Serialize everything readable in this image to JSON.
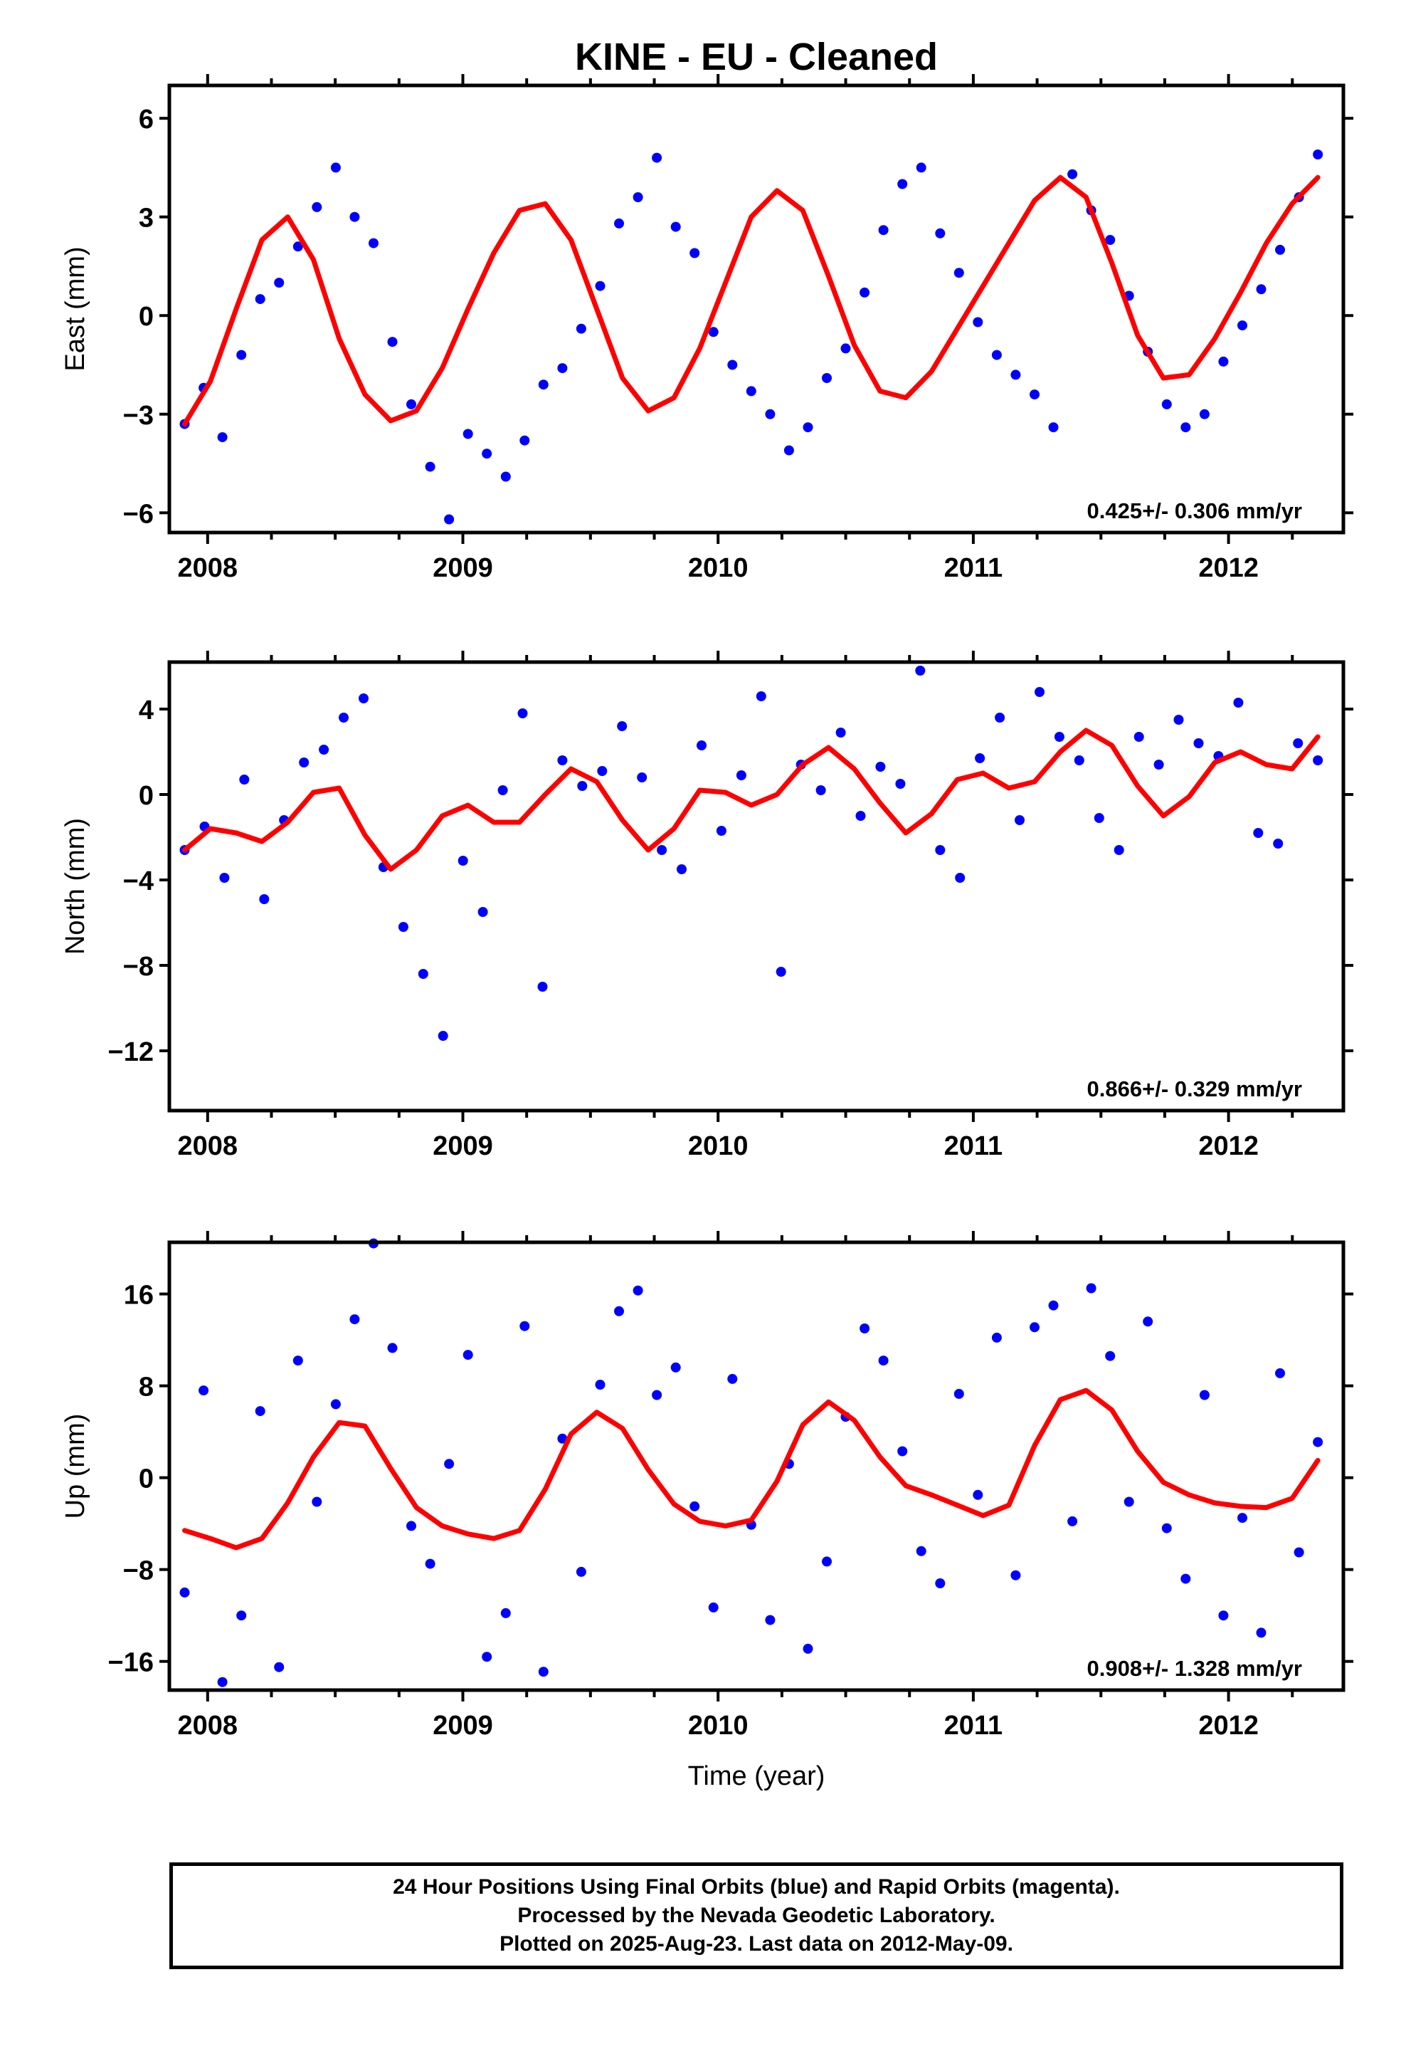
{
  "chart_data": [
    {
      "type": "scatter",
      "title": "KINE  - EU - Cleaned",
      "xlabel": "",
      "ylabel": "East (mm)",
      "xlim": [
        2007.85,
        2012.45
      ],
      "ylim": [
        -6.6,
        7.0
      ],
      "yticks": [
        -6,
        -3,
        0,
        3,
        6
      ],
      "ytick_labels": [
        "−6",
        "−3",
        "0",
        "3",
        "6"
      ],
      "xticks": [
        2008,
        2009,
        2010,
        2011,
        2012
      ],
      "xtick_labels": [
        "2008",
        "2009",
        "2010",
        "2011",
        "2012"
      ],
      "velocity_label": "0.425+/- 0.306 mm/yr",
      "grid": false,
      "series": [
        {
          "color": "#0000ff",
          "values": [
            -3.3,
            -2.2,
            -3.7,
            -1.2,
            0.5,
            1.0,
            2.1,
            3.3,
            4.5,
            3.0,
            2.2,
            -0.8,
            -2.7,
            -4.6,
            -6.2,
            -3.6,
            -4.2,
            -4.9,
            -3.8,
            -2.1,
            -1.6,
            -0.4,
            0.9,
            2.8,
            3.6,
            4.8,
            2.7,
            1.9,
            -0.5,
            -1.5,
            -2.3,
            -3.0,
            -4.1,
            -3.4,
            -1.9,
            -1.0,
            0.7,
            2.6,
            4.0,
            4.5,
            2.5,
            1.3,
            -0.2,
            -1.2,
            -1.8,
            -2.4,
            -3.4,
            4.3,
            3.2,
            2.3,
            0.6,
            -1.1,
            -2.7,
            -3.4,
            -3.0,
            -1.4,
            -0.3,
            0.8,
            2.0,
            3.6,
            4.9
          ]
        },
        {
          "color": "#ff0000",
          "values": [
            -3.3,
            -2.0,
            0.2,
            2.3,
            3.0,
            1.7,
            -0.7,
            -2.4,
            -3.2,
            -2.9,
            -1.6,
            0.2,
            1.9,
            3.2,
            3.4,
            2.3,
            0.2,
            -1.9,
            -2.9,
            -2.5,
            -1.0,
            1.0,
            3.0,
            3.8,
            3.2,
            1.2,
            -0.9,
            -2.3,
            -2.5,
            -1.7,
            -0.4,
            0.9,
            2.2,
            3.5,
            4.2,
            3.6,
            1.6,
            -0.6,
            -1.9,
            -1.8,
            -0.7,
            0.7,
            2.2,
            3.4,
            4.2
          ]
        }
      ]
    },
    {
      "type": "scatter",
      "title": "",
      "xlabel": "",
      "ylabel": "North (mm)",
      "xlim": [
        2007.85,
        2012.45
      ],
      "ylim": [
        -14.8,
        6.2
      ],
      "yticks": [
        -12,
        -8,
        -4,
        0,
        4
      ],
      "ytick_labels": [
        "−12",
        "−8",
        "−4",
        "0",
        "4"
      ],
      "xticks": [
        2008,
        2009,
        2010,
        2011,
        2012
      ],
      "xtick_labels": [
        "2008",
        "2009",
        "2010",
        "2011",
        "2012"
      ],
      "velocity_label": "0.866+/- 0.329 mm/yr",
      "grid": false,
      "series": [
        {
          "color": "#0000ff",
          "values": [
            -2.6,
            -1.5,
            -3.9,
            0.7,
            -4.9,
            -1.2,
            1.5,
            2.1,
            3.6,
            4.5,
            -3.4,
            -6.2,
            -8.4,
            -11.3,
            -3.1,
            -5.5,
            0.2,
            3.8,
            -9.0,
            1.6,
            0.4,
            1.1,
            3.2,
            0.8,
            -2.6,
            -3.5,
            2.3,
            -1.7,
            0.9,
            4.6,
            -8.3,
            1.4,
            0.2,
            2.9,
            -1.0,
            1.3,
            0.5,
            5.8,
            -2.6,
            -3.9,
            1.7,
            3.6,
            -1.2,
            4.8,
            2.7,
            1.6,
            -1.1,
            -2.6,
            2.7,
            1.4,
            3.5,
            2.4,
            1.8,
            4.3,
            -1.8,
            -2.3,
            2.4,
            1.6
          ]
        },
        {
          "color": "#ff0000",
          "values": [
            -2.6,
            -1.6,
            -1.8,
            -2.2,
            -1.3,
            0.1,
            0.3,
            -1.9,
            -3.5,
            -2.6,
            -1.0,
            -0.5,
            -1.3,
            -1.3,
            0.0,
            1.2,
            0.6,
            -1.2,
            -2.6,
            -1.6,
            0.2,
            0.1,
            -0.5,
            0.0,
            1.4,
            2.2,
            1.2,
            -0.4,
            -1.8,
            -0.9,
            0.7,
            1.0,
            0.3,
            0.6,
            2.0,
            3.0,
            2.3,
            0.4,
            -1.0,
            -0.1,
            1.5,
            2.0,
            1.4,
            1.2,
            2.7
          ]
        }
      ]
    },
    {
      "type": "scatter",
      "title": "",
      "xlabel": "Time (year)",
      "ylabel": "Up (mm)",
      "xlim": [
        2007.85,
        2012.45
      ],
      "ylim": [
        -18.5,
        20.5
      ],
      "yticks": [
        -16,
        -8,
        0,
        8,
        16
      ],
      "ytick_labels": [
        "−16",
        "−8",
        "0",
        "8",
        "16"
      ],
      "xticks": [
        2008,
        2009,
        2010,
        2011,
        2012
      ],
      "xtick_labels": [
        "2008",
        "2009",
        "2010",
        "2011",
        "2012"
      ],
      "velocity_label": "0.908+/- 1.328 mm/yr",
      "grid": false,
      "series": [
        {
          "color": "#0000ff",
          "values": [
            -10.0,
            7.6,
            -17.8,
            -12.0,
            5.8,
            -16.5,
            10.2,
            -2.1,
            6.4,
            13.8,
            20.4,
            11.3,
            -4.2,
            -7.5,
            1.2,
            10.7,
            -15.6,
            -11.8,
            13.2,
            -16.9,
            3.4,
            -8.2,
            8.1,
            14.5,
            16.3,
            7.2,
            9.6,
            -2.5,
            -11.3,
            8.6,
            -4.1,
            -12.4,
            1.2,
            -14.9,
            -7.3,
            5.3,
            13.0,
            10.2,
            2.3,
            -6.4,
            -9.2,
            7.3,
            -1.5,
            12.2,
            -8.5,
            13.1,
            15.0,
            -3.8,
            16.5,
            10.6,
            -2.1,
            13.6,
            -4.4,
            -8.8,
            7.2,
            -12.0,
            -3.5,
            -13.5,
            9.1,
            -6.5,
            3.1
          ]
        },
        {
          "color": "#ff0000",
          "values": [
            -4.6,
            -5.3,
            -6.1,
            -5.3,
            -2.2,
            1.8,
            4.8,
            4.5,
            0.8,
            -2.6,
            -4.2,
            -4.9,
            -5.3,
            -4.6,
            -1.0,
            3.8,
            5.7,
            4.3,
            0.7,
            -2.3,
            -3.8,
            -4.2,
            -3.7,
            -0.3,
            4.6,
            6.6,
            5.0,
            1.8,
            -0.7,
            -1.5,
            -2.4,
            -3.3,
            -2.4,
            2.8,
            6.8,
            7.6,
            5.9,
            2.3,
            -0.4,
            -1.5,
            -2.2,
            -2.5,
            -2.6,
            -1.8,
            1.5
          ]
        }
      ]
    }
  ],
  "footer": {
    "line1": "24 Hour Positions Using Final Orbits (blue) and Rapid Orbits (magenta).",
    "line2": "Processed by the Nevada Geodetic Laboratory.",
    "line3": "Plotted on 2025-Aug-23. Last data on 2012-May-09."
  }
}
